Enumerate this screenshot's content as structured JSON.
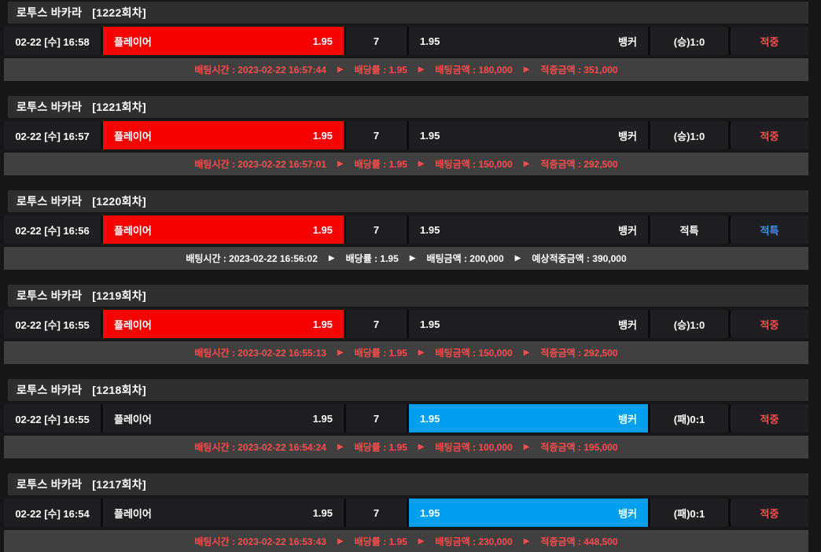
{
  "separator_icon": "▶",
  "colors": {
    "player_highlight": "#f70000",
    "banker_highlight": "#00a0f0",
    "hit_text": "#ff4c4c",
    "tie_text": "#3f8ef6",
    "title_bg": "#2f2f2f",
    "cell_bg": "#1e1f22",
    "detail_bg": "#404040"
  },
  "blocks": [
    {
      "game": "로투스 바카라",
      "round": "[1222회차]",
      "row": {
        "datetime": "02-22 [수] 16:58",
        "player": {
          "label": "플레이어",
          "odds": "1.95",
          "highlight": "red"
        },
        "tie": "7",
        "banker": {
          "odds": "1.95",
          "label": "뱅커",
          "highlight": "none"
        },
        "result": "(승)1:0",
        "status": "적중",
        "status_color": "red"
      },
      "detail": {
        "color": "red",
        "segments": [
          "배팅시간 : 2023-02-22 16:57:44",
          "배당률 : 1.95",
          "배팅금액 : 180,000",
          "적중금액 : 351,000"
        ]
      }
    },
    {
      "game": "로투스 바카라",
      "round": "[1221회차]",
      "row": {
        "datetime": "02-22 [수] 16:57",
        "player": {
          "label": "플레이어",
          "odds": "1.95",
          "highlight": "red"
        },
        "tie": "7",
        "banker": {
          "odds": "1.95",
          "label": "뱅커",
          "highlight": "none"
        },
        "result": "(승)1:0",
        "status": "적중",
        "status_color": "red"
      },
      "detail": {
        "color": "red",
        "segments": [
          "배팅시간 : 2023-02-22 16:57:01",
          "배당률 : 1.95",
          "배팅금액 : 150,000",
          "적중금액 : 292,500"
        ]
      }
    },
    {
      "game": "로투스 바카라",
      "round": "[1220회차]",
      "row": {
        "datetime": "02-22 [수] 16:56",
        "player": {
          "label": "플레이어",
          "odds": "1.95",
          "highlight": "red"
        },
        "tie": "7",
        "banker": {
          "odds": "1.95",
          "label": "뱅커",
          "highlight": "none"
        },
        "result": "적특",
        "status": "적특",
        "status_color": "blue"
      },
      "detail": {
        "color": "white",
        "segments": [
          "배팅시간 : 2023-02-22 16:56:02",
          "배당률 : 1.95",
          "배팅금액 : 200,000",
          "예상적중금액 : 390,000"
        ]
      }
    },
    {
      "game": "로투스 바카라",
      "round": "[1219회차]",
      "row": {
        "datetime": "02-22 [수] 16:55",
        "player": {
          "label": "플레이어",
          "odds": "1.95",
          "highlight": "red"
        },
        "tie": "7",
        "banker": {
          "odds": "1.95",
          "label": "뱅커",
          "highlight": "none"
        },
        "result": "(승)1:0",
        "status": "적중",
        "status_color": "red"
      },
      "detail": {
        "color": "red",
        "segments": [
          "배팅시간 : 2023-02-22 16:55:13",
          "배당률 : 1.95",
          "배팅금액 : 150,000",
          "적중금액 : 292,500"
        ]
      }
    },
    {
      "game": "로투스 바카라",
      "round": "[1218회차]",
      "row": {
        "datetime": "02-22 [수] 16:55",
        "player": {
          "label": "플레이어",
          "odds": "1.95",
          "highlight": "none"
        },
        "tie": "7",
        "banker": {
          "odds": "1.95",
          "label": "뱅커",
          "highlight": "blue"
        },
        "result": "(패)0:1",
        "status": "적중",
        "status_color": "red"
      },
      "detail": {
        "color": "red",
        "segments": [
          "배팅시간 : 2023-02-22 16:54:24",
          "배당률 : 1.95",
          "배팅금액 : 100,000",
          "적중금액 : 195,000"
        ]
      }
    },
    {
      "game": "로투스 바카라",
      "round": "[1217회차]",
      "row": {
        "datetime": "02-22 [수] 16:54",
        "player": {
          "label": "플레이어",
          "odds": "1.95",
          "highlight": "none"
        },
        "tie": "7",
        "banker": {
          "odds": "1.95",
          "label": "뱅커",
          "highlight": "blue"
        },
        "result": "(패)0:1",
        "status": "적중",
        "status_color": "red"
      },
      "detail": {
        "color": "red",
        "segments": [
          "배팅시간 : 2023-02-22 16:53:43",
          "배당률 : 1.95",
          "배팅금액 : 230,000",
          "적중금액 : 448,500"
        ]
      }
    }
  ]
}
